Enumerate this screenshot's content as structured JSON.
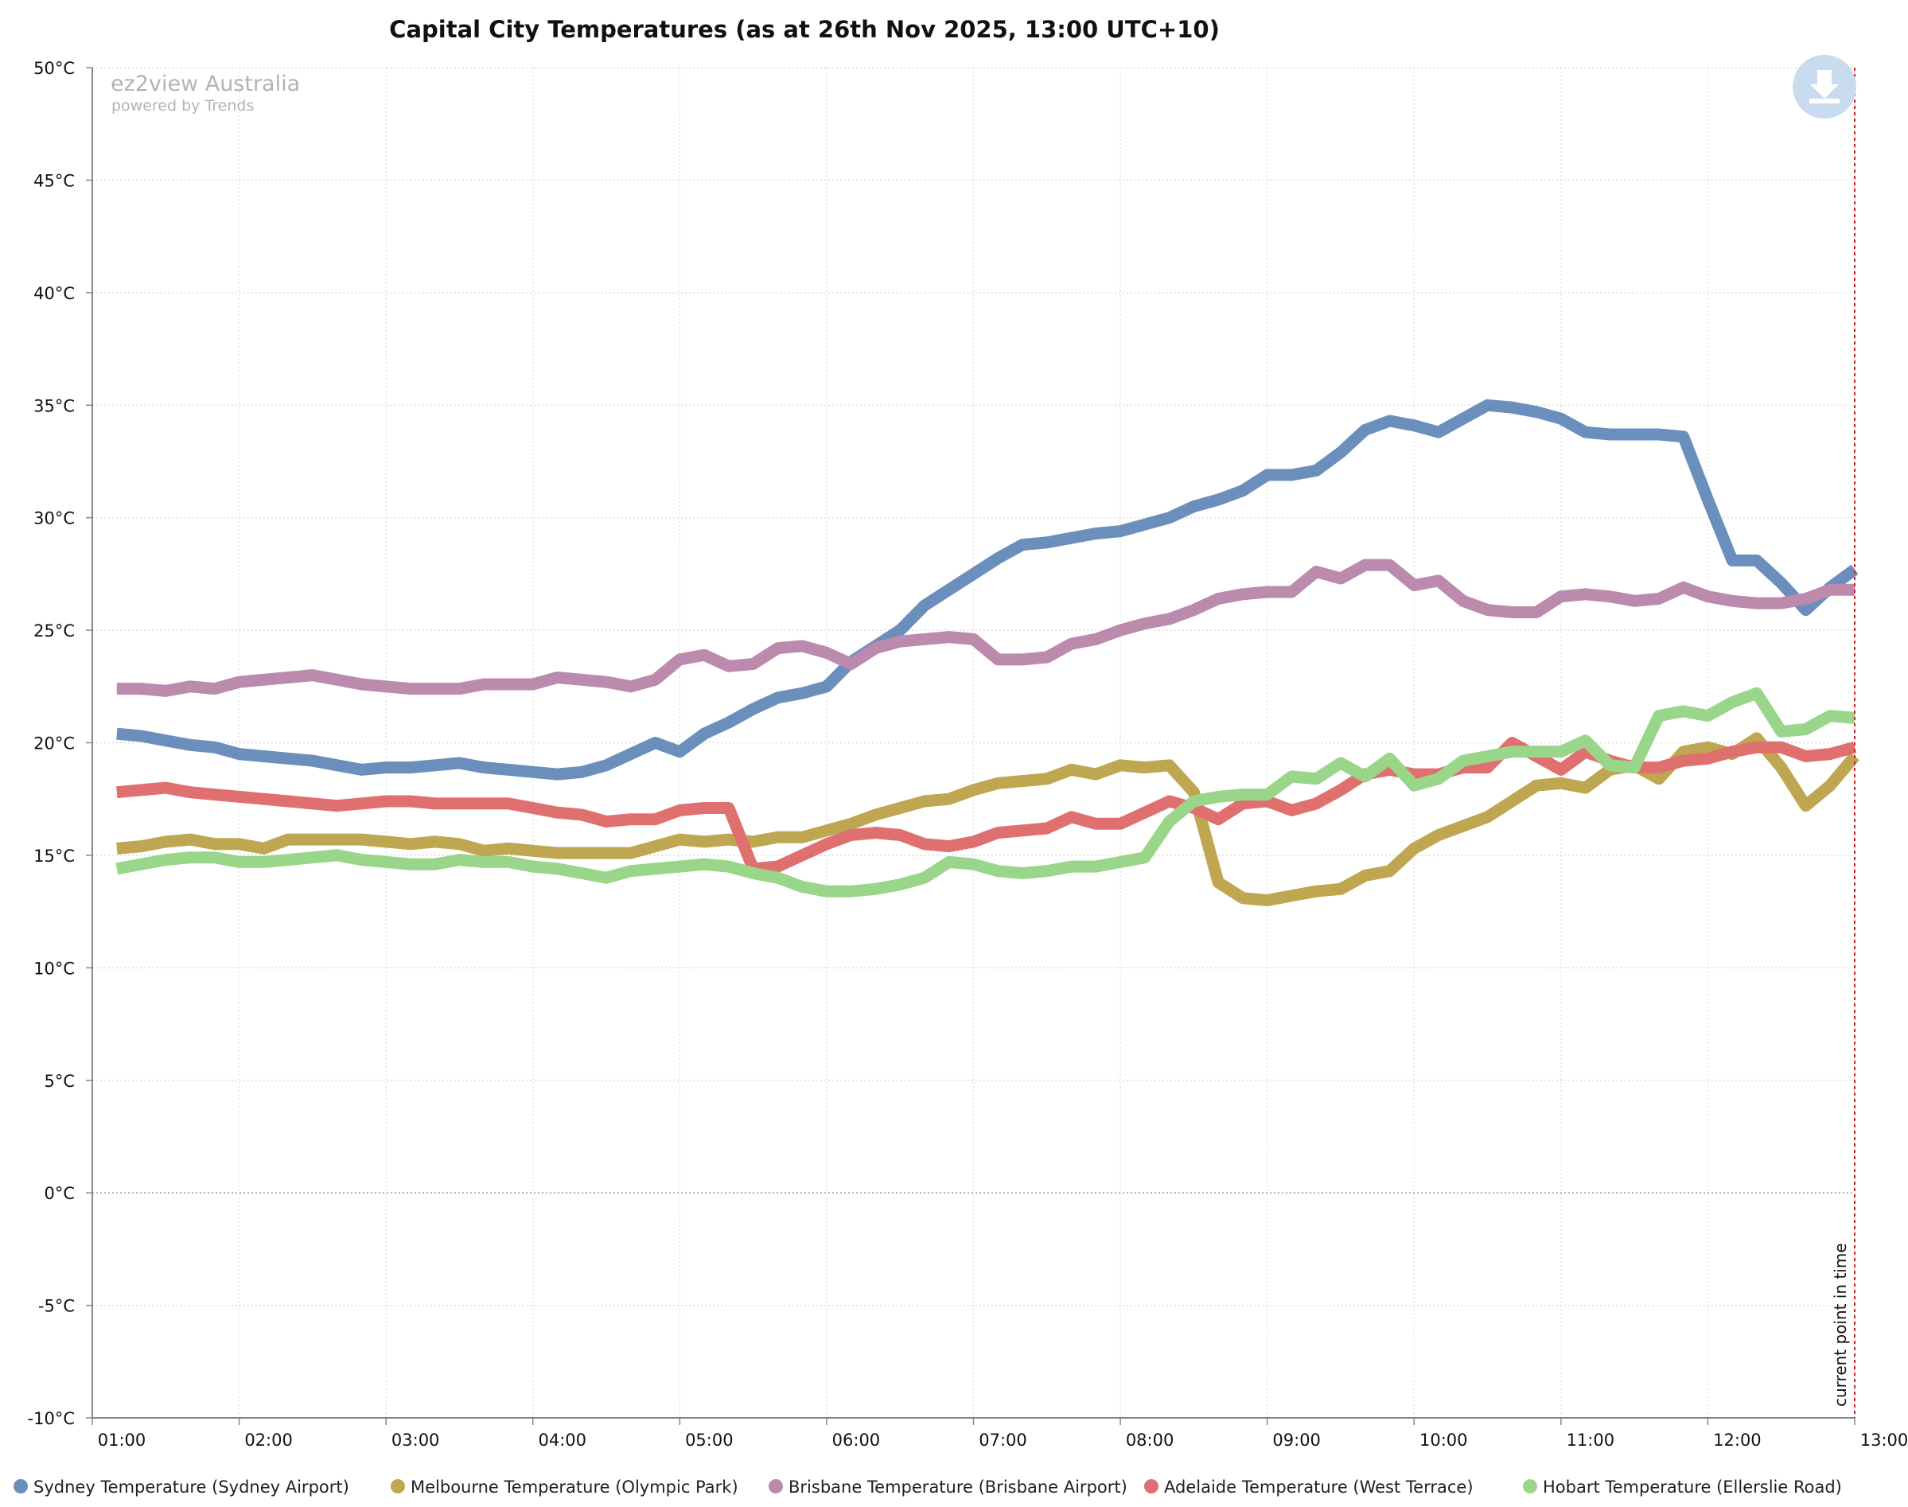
{
  "chart_data": {
    "type": "line",
    "title": "Capital City Temperatures (as at 26th Nov 2025, 13:00 UTC+10)",
    "watermark": {
      "brand": "ez2view Australia",
      "sub": "powered by Trends"
    },
    "download_icon": "download-icon",
    "current_marker": {
      "label": "current point in time",
      "time": "13:00",
      "color": "#cc2222"
    },
    "ylim": [
      -10,
      50
    ],
    "y_ticks": [
      {
        "value": 50,
        "label": "50°C"
      },
      {
        "value": 45,
        "label": "45°C"
      },
      {
        "value": 40,
        "label": "40°C"
      },
      {
        "value": 35,
        "label": "35°C"
      },
      {
        "value": 30,
        "label": "30°C"
      },
      {
        "value": 25,
        "label": "25°C"
      },
      {
        "value": 20,
        "label": "20°C"
      },
      {
        "value": 15,
        "label": "15°C"
      },
      {
        "value": 10,
        "label": "10°C"
      },
      {
        "value": 5,
        "label": "5°C"
      },
      {
        "value": 0,
        "label": "0°C"
      },
      {
        "value": -5,
        "label": "-5°C"
      },
      {
        "value": -10,
        "label": "-10°C"
      }
    ],
    "x_range_hours": [
      1,
      13
    ],
    "x_ticks": [
      {
        "value": 1,
        "label": "01:00"
      },
      {
        "value": 2,
        "label": "02:00"
      },
      {
        "value": 3,
        "label": "03:00"
      },
      {
        "value": 4,
        "label": "04:00"
      },
      {
        "value": 5,
        "label": "05:00"
      },
      {
        "value": 6,
        "label": "06:00"
      },
      {
        "value": 7,
        "label": "07:00"
      },
      {
        "value": 8,
        "label": "08:00"
      },
      {
        "value": 9,
        "label": "09:00"
      },
      {
        "value": 10,
        "label": "10:00"
      },
      {
        "value": 11,
        "label": "11:00"
      },
      {
        "value": 12,
        "label": "12:00"
      },
      {
        "value": 13,
        "label": "13:00"
      }
    ],
    "sample_interval_min": 10,
    "series": [
      {
        "name": "Sydney Temperature (Sydney Airport)",
        "color": "#6b8fbc",
        "values": [
          20.4,
          20.3,
          20.1,
          19.9,
          19.8,
          19.5,
          19.4,
          19.3,
          19.2,
          19.0,
          18.8,
          18.9,
          18.9,
          19.0,
          19.1,
          18.9,
          18.8,
          18.7,
          18.6,
          18.7,
          19.0,
          19.5,
          20.0,
          19.6,
          20.4,
          20.9,
          21.5,
          22.0,
          22.2,
          22.5,
          23.6,
          24.3,
          25.0,
          26.1,
          26.8,
          27.5,
          28.2,
          28.8,
          28.9,
          29.1,
          29.3,
          29.4,
          29.7,
          30.0,
          30.5,
          30.8,
          31.2,
          31.9,
          31.9,
          32.1,
          32.9,
          33.9,
          34.3,
          34.1,
          33.8,
          34.4,
          35.0,
          34.9,
          34.7,
          34.4,
          33.8,
          33.7,
          33.7,
          33.7,
          33.6,
          30.8,
          28.1,
          28.1,
          27.1,
          25.9,
          26.9,
          27.7
        ]
      },
      {
        "name": "Melbourne Temperature (Olympic Park)",
        "color": "#bfa650",
        "values": [
          15.3,
          15.4,
          15.6,
          15.7,
          15.5,
          15.5,
          15.3,
          15.7,
          15.7,
          15.7,
          15.7,
          15.6,
          15.5,
          15.6,
          15.5,
          15.2,
          15.3,
          15.2,
          15.1,
          15.1,
          15.1,
          15.1,
          15.4,
          15.7,
          15.6,
          15.7,
          15.6,
          15.8,
          15.8,
          16.1,
          16.4,
          16.8,
          17.1,
          17.4,
          17.5,
          17.9,
          18.2,
          18.3,
          18.4,
          18.8,
          18.6,
          19.0,
          18.9,
          19.0,
          17.8,
          13.8,
          13.1,
          13.0,
          13.2,
          13.4,
          13.5,
          14.1,
          14.3,
          15.3,
          15.9,
          16.3,
          16.7,
          17.4,
          18.1,
          18.2,
          18.0,
          18.8,
          19.0,
          18.4,
          19.6,
          19.8,
          19.5,
          20.2,
          18.9,
          17.2,
          18.1,
          19.4
        ]
      },
      {
        "name": "Brisbane Temperature (Brisbane Airport)",
        "color": "#bb8aad",
        "values": [
          22.4,
          22.4,
          22.3,
          22.5,
          22.4,
          22.7,
          22.8,
          22.9,
          23.0,
          22.8,
          22.6,
          22.5,
          22.4,
          22.4,
          22.4,
          22.6,
          22.6,
          22.6,
          22.9,
          22.8,
          22.7,
          22.5,
          22.8,
          23.7,
          23.9,
          23.4,
          23.5,
          24.2,
          24.3,
          24.0,
          23.5,
          24.2,
          24.5,
          24.6,
          24.7,
          24.6,
          23.7,
          23.7,
          23.8,
          24.4,
          24.6,
          25.0,
          25.3,
          25.5,
          25.9,
          26.4,
          26.6,
          26.7,
          26.7,
          27.6,
          27.3,
          27.9,
          27.9,
          27.0,
          27.2,
          26.3,
          25.9,
          25.8,
          25.8,
          26.5,
          26.6,
          26.5,
          26.3,
          26.4,
          26.9,
          26.5,
          26.3,
          26.2,
          26.2,
          26.4,
          26.8,
          26.8
        ]
      },
      {
        "name": "Adelaide Temperature (West Terrace)",
        "color": "#e07070",
        "values": [
          17.8,
          17.9,
          18.0,
          17.8,
          17.7,
          17.6,
          17.5,
          17.4,
          17.3,
          17.2,
          17.3,
          17.4,
          17.4,
          17.3,
          17.3,
          17.3,
          17.3,
          17.1,
          16.9,
          16.8,
          16.5,
          16.6,
          16.6,
          17.0,
          17.1,
          17.1,
          14.4,
          14.5,
          15.0,
          15.5,
          15.9,
          16.0,
          15.9,
          15.5,
          15.4,
          15.6,
          16.0,
          16.1,
          16.2,
          16.7,
          16.4,
          16.4,
          16.9,
          17.4,
          17.1,
          16.6,
          17.3,
          17.4,
          17.0,
          17.3,
          17.9,
          18.6,
          18.8,
          18.6,
          18.6,
          18.9,
          18.9,
          20.0,
          19.4,
          18.8,
          19.6,
          19.2,
          18.9,
          18.9,
          19.2,
          19.3,
          19.6,
          19.8,
          19.8,
          19.4,
          19.5,
          19.8
        ]
      },
      {
        "name": "Hobart Temperature (Ellerslie Road)",
        "color": "#99d68a",
        "values": [
          14.4,
          14.6,
          14.8,
          14.9,
          14.9,
          14.7,
          14.7,
          14.8,
          14.9,
          15.0,
          14.8,
          14.7,
          14.6,
          14.6,
          14.8,
          14.7,
          14.7,
          14.5,
          14.4,
          14.2,
          14.0,
          14.3,
          14.4,
          14.5,
          14.6,
          14.5,
          14.2,
          14.0,
          13.6,
          13.4,
          13.4,
          13.5,
          13.7,
          14.0,
          14.7,
          14.6,
          14.3,
          14.2,
          14.3,
          14.5,
          14.5,
          14.7,
          14.9,
          16.5,
          17.4,
          17.6,
          17.7,
          17.7,
          18.5,
          18.4,
          19.1,
          18.5,
          19.3,
          18.1,
          18.4,
          19.2,
          19.4,
          19.6,
          19.6,
          19.6,
          20.1,
          19.0,
          18.9,
          21.2,
          21.4,
          21.2,
          21.8,
          22.2,
          20.5,
          20.6,
          21.2,
          21.1
        ]
      }
    ]
  }
}
